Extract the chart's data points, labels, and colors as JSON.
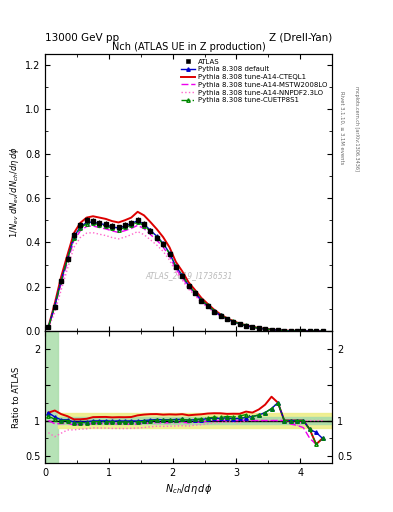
{
  "title_top_left": "13000 GeV pp",
  "title_top_right": "Z (Drell-Yan)",
  "plot_title": "Nch (ATLAS UE in Z production)",
  "watermark": "ATLAS_2019_I1736531",
  "right_label_top": "Rivet 3.1.10, ≥ 3.1M events",
  "right_label_bot": "mcplots.cern.ch [arXiv:1306.3436]",
  "xlabel": "N_{ch}/dη dφ",
  "ylabel": "1/N_{ev} dN_{ev}/dN_{ch}/dη dφ",
  "ylabel_ratio": "Ratio to ATLAS",
  "xlim": [
    0,
    4.5
  ],
  "ylim_main": [
    0,
    1.25
  ],
  "ylim_ratio": [
    0.4,
    2.25
  ],
  "xdata": [
    0.05,
    0.15,
    0.25,
    0.35,
    0.45,
    0.55,
    0.65,
    0.75,
    0.85,
    0.95,
    1.05,
    1.15,
    1.25,
    1.35,
    1.45,
    1.55,
    1.65,
    1.75,
    1.85,
    1.95,
    2.05,
    2.15,
    2.25,
    2.35,
    2.45,
    2.55,
    2.65,
    2.75,
    2.85,
    2.95,
    3.05,
    3.15,
    3.25,
    3.35,
    3.45,
    3.55,
    3.65,
    3.75,
    3.85,
    3.95,
    4.05,
    4.15,
    4.25,
    4.35
  ],
  "atlas_y": [
    0.018,
    0.11,
    0.225,
    0.325,
    0.435,
    0.48,
    0.5,
    0.495,
    0.488,
    0.482,
    0.475,
    0.468,
    0.478,
    0.488,
    0.502,
    0.482,
    0.452,
    0.422,
    0.392,
    0.348,
    0.288,
    0.248,
    0.205,
    0.172,
    0.138,
    0.112,
    0.088,
    0.069,
    0.054,
    0.042,
    0.032,
    0.024,
    0.018,
    0.013,
    0.009,
    0.006,
    0.004,
    0.003,
    0.002,
    0.0015,
    0.001,
    0.0008,
    0.0006,
    0.0004
  ],
  "atlas_yerr": [
    0.003,
    0.008,
    0.01,
    0.012,
    0.013,
    0.013,
    0.013,
    0.013,
    0.013,
    0.013,
    0.013,
    0.012,
    0.013,
    0.013,
    0.013,
    0.013,
    0.012,
    0.012,
    0.011,
    0.01,
    0.009,
    0.008,
    0.007,
    0.006,
    0.006,
    0.005,
    0.004,
    0.004,
    0.003,
    0.003,
    0.002,
    0.002,
    0.002,
    0.001,
    0.001,
    0.001,
    0.001,
    0.0005,
    0.0005,
    0.0004,
    0.0003,
    0.0003,
    0.0002,
    0.0002
  ],
  "default_y": [
    0.02,
    0.115,
    0.228,
    0.328,
    0.425,
    0.47,
    0.49,
    0.492,
    0.485,
    0.48,
    0.47,
    0.465,
    0.474,
    0.485,
    0.498,
    0.482,
    0.455,
    0.428,
    0.396,
    0.352,
    0.292,
    0.252,
    0.206,
    0.174,
    0.14,
    0.115,
    0.091,
    0.071,
    0.056,
    0.043,
    0.033,
    0.025,
    0.019,
    0.014,
    0.01,
    0.007,
    0.005,
    0.003,
    0.002,
    0.0015,
    0.001,
    0.0007,
    0.0005,
    0.0003
  ],
  "cteql1_y": [
    0.02,
    0.125,
    0.245,
    0.345,
    0.442,
    0.488,
    0.512,
    0.518,
    0.512,
    0.506,
    0.496,
    0.49,
    0.5,
    0.512,
    0.538,
    0.522,
    0.492,
    0.46,
    0.424,
    0.378,
    0.312,
    0.27,
    0.22,
    0.186,
    0.15,
    0.123,
    0.097,
    0.076,
    0.059,
    0.046,
    0.035,
    0.027,
    0.02,
    0.015,
    0.011,
    0.008,
    0.005,
    0.003,
    0.002,
    0.0015,
    0.001,
    0.0007,
    0.0004,
    0.0003
  ],
  "mstw_y": [
    0.018,
    0.105,
    0.215,
    0.312,
    0.408,
    0.452,
    0.472,
    0.474,
    0.467,
    0.461,
    0.452,
    0.445,
    0.453,
    0.463,
    0.477,
    0.462,
    0.436,
    0.41,
    0.379,
    0.337,
    0.28,
    0.242,
    0.198,
    0.168,
    0.135,
    0.111,
    0.088,
    0.069,
    0.054,
    0.042,
    0.032,
    0.024,
    0.018,
    0.013,
    0.009,
    0.006,
    0.004,
    0.003,
    0.0019,
    0.0014,
    0.0009,
    0.0006,
    0.0004,
    0.0003
  ],
  "nnpdf_y": [
    0.015,
    0.085,
    0.185,
    0.282,
    0.378,
    0.422,
    0.442,
    0.444,
    0.437,
    0.431,
    0.422,
    0.416,
    0.424,
    0.435,
    0.449,
    0.435,
    0.412,
    0.388,
    0.36,
    0.32,
    0.266,
    0.23,
    0.189,
    0.161,
    0.13,
    0.107,
    0.085,
    0.067,
    0.053,
    0.041,
    0.031,
    0.024,
    0.018,
    0.013,
    0.009,
    0.006,
    0.004,
    0.003,
    0.002,
    0.0014,
    0.001,
    0.0008,
    0.0006,
    0.0004
  ],
  "cuetp_y": [
    0.019,
    0.112,
    0.225,
    0.325,
    0.42,
    0.465,
    0.485,
    0.487,
    0.48,
    0.474,
    0.465,
    0.458,
    0.468,
    0.478,
    0.492,
    0.476,
    0.45,
    0.424,
    0.393,
    0.35,
    0.291,
    0.252,
    0.206,
    0.175,
    0.141,
    0.116,
    0.092,
    0.072,
    0.057,
    0.044,
    0.034,
    0.026,
    0.019,
    0.014,
    0.01,
    0.007,
    0.005,
    0.003,
    0.002,
    0.0015,
    0.001,
    0.0007,
    0.0004,
    0.0003
  ],
  "ratio_default": [
    1.11,
    1.05,
    1.01,
    1.01,
    0.977,
    0.979,
    0.98,
    0.994,
    0.994,
    0.996,
    0.989,
    0.994,
    0.992,
    0.994,
    0.992,
    1.0,
    1.007,
    1.014,
    1.01,
    1.011,
    1.014,
    1.016,
    1.005,
    1.012,
    1.014,
    1.027,
    1.034,
    1.029,
    1.037,
    1.024,
    1.031,
    1.042,
    1.056,
    1.077,
    1.11,
    1.167,
    1.25,
    1.0,
    1.0,
    1.0,
    1.0,
    0.875,
    0.833,
    0.75
  ],
  "ratio_cteql1": [
    1.11,
    1.14,
    1.09,
    1.06,
    1.016,
    1.017,
    1.024,
    1.047,
    1.049,
    1.05,
    1.044,
    1.047,
    1.046,
    1.049,
    1.072,
    1.083,
    1.089,
    1.09,
    1.082,
    1.086,
    1.083,
    1.089,
    1.073,
    1.081,
    1.087,
    1.098,
    1.102,
    1.101,
    1.093,
    1.095,
    1.094,
    1.125,
    1.111,
    1.154,
    1.222,
    1.333,
    1.25,
    1.0,
    1.0,
    1.0,
    1.0,
    0.875,
    0.667,
    0.75
  ],
  "ratio_mstw": [
    1.0,
    0.955,
    0.956,
    0.96,
    0.937,
    0.942,
    0.944,
    0.957,
    0.956,
    0.956,
    0.952,
    0.951,
    0.948,
    0.948,
    0.95,
    0.958,
    0.965,
    0.971,
    0.967,
    0.968,
    0.972,
    0.976,
    0.966,
    0.977,
    0.978,
    0.991,
    1.0,
    1.0,
    1.0,
    1.0,
    1.0,
    1.0,
    1.0,
    1.0,
    1.0,
    1.0,
    1.0,
    1.0,
    0.95,
    0.933,
    0.9,
    0.75,
    0.667,
    0.75
  ],
  "ratio_nnpdf": [
    0.83,
    0.773,
    0.822,
    0.868,
    0.869,
    0.879,
    0.884,
    0.897,
    0.895,
    0.894,
    0.889,
    0.889,
    0.887,
    0.891,
    0.895,
    0.902,
    0.912,
    0.92,
    0.918,
    0.92,
    0.924,
    0.927,
    0.922,
    0.936,
    0.942,
    0.955,
    0.966,
    0.971,
    0.981,
    0.976,
    0.969,
    1.0,
    1.0,
    1.0,
    1.0,
    1.0,
    1.0,
    1.0,
    1.0,
    0.933,
    1.0,
    1.0,
    1.0,
    1.0
  ],
  "ratio_cuetp": [
    1.06,
    1.018,
    1.0,
    1.0,
    0.966,
    0.969,
    0.97,
    0.984,
    0.984,
    0.983,
    0.979,
    0.979,
    0.979,
    0.979,
    0.98,
    0.987,
    0.996,
    1.005,
    1.003,
    1.006,
    1.01,
    1.016,
    1.005,
    1.017,
    1.022,
    1.036,
    1.045,
    1.043,
    1.056,
    1.048,
    1.063,
    1.083,
    1.056,
    1.077,
    1.111,
    1.167,
    1.25,
    1.0,
    1.0,
    1.0,
    1.0,
    0.875,
    0.667,
    0.75
  ],
  "color_atlas": "#000000",
  "color_default": "#0000cc",
  "color_cteql1": "#dd0000",
  "color_mstw": "#ee00ee",
  "color_nnpdf": "#ff66cc",
  "color_cuetp": "#008800",
  "color_green_band": "#aaddaa",
  "color_yellow_band": "#eeee88"
}
